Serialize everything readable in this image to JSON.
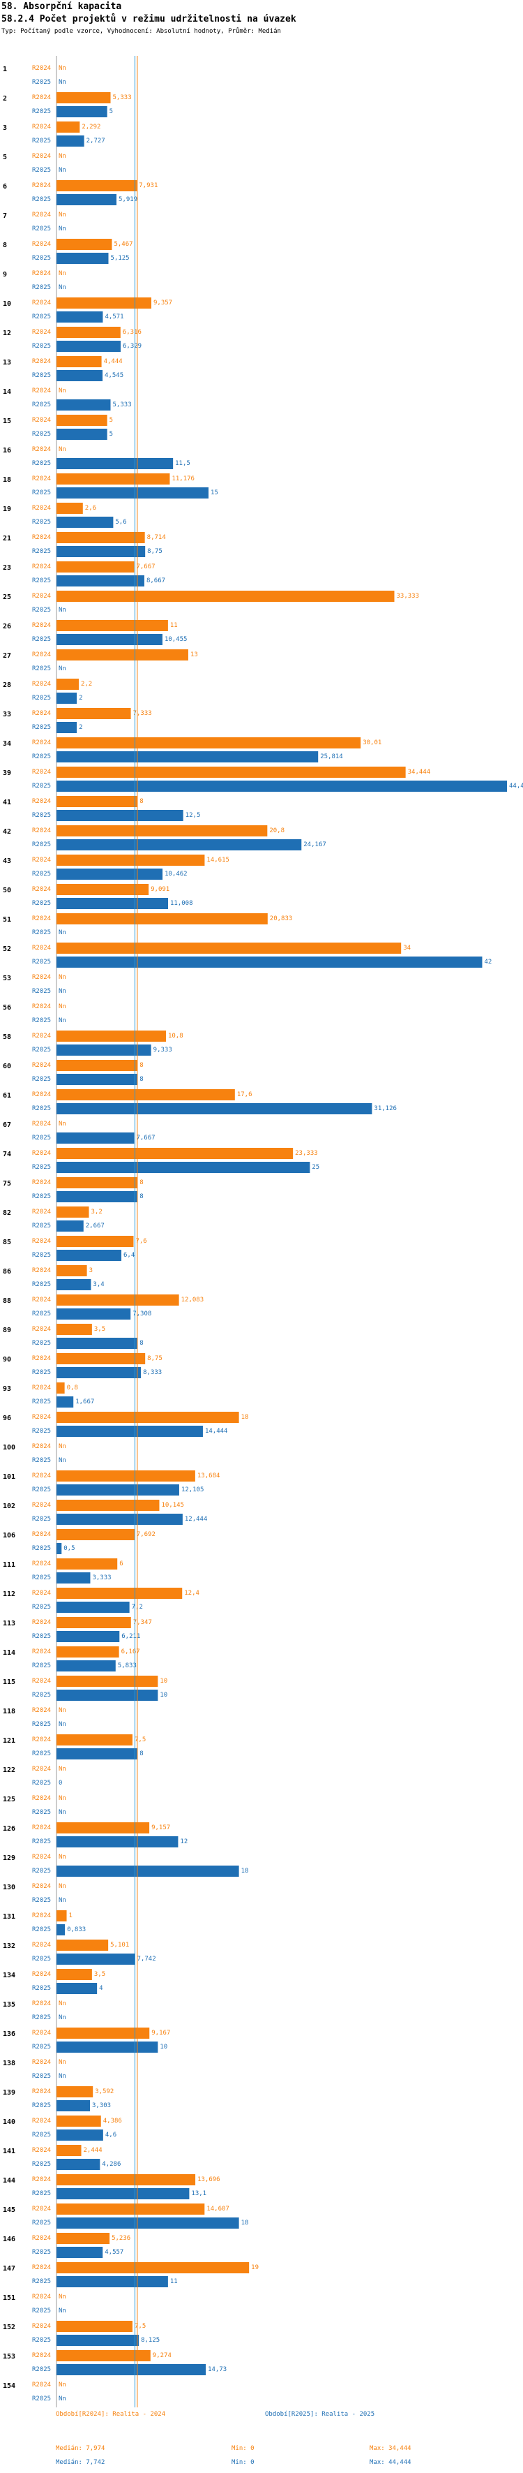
{
  "header": {
    "title": "58. Absorpční kapacita",
    "subtitle": "58.2.4 Počet projektů v režimu udržitelnosti na úvazek",
    "meta": "Typ: Počítaný podle vzorce, Vyhodnocení: Absolutní hodnoty, Průměr: Medián"
  },
  "colors": {
    "r2024": "#f7820f",
    "r2025": "#1f6fb4",
    "median2024": "#f7820f",
    "median2025": "#2a9ad8"
  },
  "legend": {
    "r2024_label": "Období[R2024]: Realita - 2024",
    "r2025_label": "Období[R2025]: Realita - 2025",
    "r2024_median": "Medián: 7,974",
    "r2025_median": "Medián: 7,742",
    "r2024_min": "Min: 0",
    "r2025_min": "Min: 0",
    "r2024_max": "Max: 34,444",
    "r2025_max": "Max: 44,444"
  },
  "chart_data": {
    "type": "bar",
    "orientation": "horizontal",
    "xlim": [
      0,
      44.444
    ],
    "medians": {
      "R2024": 7.974,
      "R2025": 7.742
    },
    "series_names": [
      "R2024",
      "R2025"
    ],
    "rows": [
      {
        "id": "1",
        "R2024": null,
        "R2025": null
      },
      {
        "id": "2",
        "R2024": 5.333,
        "R2025": 5
      },
      {
        "id": "3",
        "R2024": 2.292,
        "R2025": 2.727
      },
      {
        "id": "5",
        "R2024": null,
        "R2025": null
      },
      {
        "id": "6",
        "R2024": 7.931,
        "R2025": 5.919
      },
      {
        "id": "7",
        "R2024": null,
        "R2025": null
      },
      {
        "id": "8",
        "R2024": 5.467,
        "R2025": 5.125
      },
      {
        "id": "9",
        "R2024": null,
        "R2025": null
      },
      {
        "id": "10",
        "R2024": 9.357,
        "R2025": 4.571
      },
      {
        "id": "12",
        "R2024": 6.316,
        "R2025": 6.329
      },
      {
        "id": "13",
        "R2024": 4.444,
        "R2025": 4.545
      },
      {
        "id": "14",
        "R2024": null,
        "R2025": 5.333
      },
      {
        "id": "15",
        "R2024": 5,
        "R2025": 5
      },
      {
        "id": "16",
        "R2024": null,
        "R2025": 11.5
      },
      {
        "id": "18",
        "R2024": 11.176,
        "R2025": 15
      },
      {
        "id": "19",
        "R2024": 2.6,
        "R2025": 5.6
      },
      {
        "id": "21",
        "R2024": 8.714,
        "R2025": 8.75
      },
      {
        "id": "23",
        "R2024": 7.667,
        "R2025": 8.667
      },
      {
        "id": "25",
        "R2024": 33.333,
        "R2025": null
      },
      {
        "id": "26",
        "R2024": 11,
        "R2025": 10.455
      },
      {
        "id": "27",
        "R2024": 13,
        "R2025": null
      },
      {
        "id": "28",
        "R2024": 2.2,
        "R2025": 2
      },
      {
        "id": "33",
        "R2024": 7.333,
        "R2025": 2
      },
      {
        "id": "34",
        "R2024": 30.01,
        "R2025": 25.814
      },
      {
        "id": "39",
        "R2024": 34.444,
        "R2025": 44.444
      },
      {
        "id": "41",
        "R2024": 8,
        "R2025": 12.5
      },
      {
        "id": "42",
        "R2024": 20.8,
        "R2025": 24.167
      },
      {
        "id": "43",
        "R2024": 14.615,
        "R2025": 10.462
      },
      {
        "id": "50",
        "R2024": 9.091,
        "R2025": 11.008
      },
      {
        "id": "51",
        "R2024": 20.833,
        "R2025": null
      },
      {
        "id": "52",
        "R2024": 34,
        "R2025": 42
      },
      {
        "id": "53",
        "R2024": null,
        "R2025": null
      },
      {
        "id": "56",
        "R2024": null,
        "R2025": null
      },
      {
        "id": "58",
        "R2024": 10.8,
        "R2025": 9.333
      },
      {
        "id": "60",
        "R2024": 8,
        "R2025": 8
      },
      {
        "id": "61",
        "R2024": 17.6,
        "R2025": 31.126
      },
      {
        "id": "67",
        "R2024": null,
        "R2025": 7.667
      },
      {
        "id": "74",
        "R2024": 23.333,
        "R2025": 25
      },
      {
        "id": "75",
        "R2024": 8,
        "R2025": 8
      },
      {
        "id": "82",
        "R2024": 3.2,
        "R2025": 2.667
      },
      {
        "id": "85",
        "R2024": 7.6,
        "R2025": 6.4
      },
      {
        "id": "86",
        "R2024": 3,
        "R2025": 3.4
      },
      {
        "id": "88",
        "R2024": 12.083,
        "R2025": 7.308
      },
      {
        "id": "89",
        "R2024": 3.5,
        "R2025": 8
      },
      {
        "id": "90",
        "R2024": 8.75,
        "R2025": 8.333
      },
      {
        "id": "93",
        "R2024": 0.8,
        "R2025": 1.667
      },
      {
        "id": "96",
        "R2024": 18,
        "R2025": 14.444
      },
      {
        "id": "100",
        "R2024": null,
        "R2025": null
      },
      {
        "id": "101",
        "R2024": 13.684,
        "R2025": 12.105
      },
      {
        "id": "102",
        "R2024": 10.145,
        "R2025": 12.444
      },
      {
        "id": "106",
        "R2024": 7.692,
        "R2025": 0.5
      },
      {
        "id": "111",
        "R2024": 6,
        "R2025": 3.333
      },
      {
        "id": "112",
        "R2024": 12.4,
        "R2025": 7.2
      },
      {
        "id": "113",
        "R2024": 7.347,
        "R2025": 6.211
      },
      {
        "id": "114",
        "R2024": 6.167,
        "R2025": 5.833
      },
      {
        "id": "115",
        "R2024": 10,
        "R2025": 10
      },
      {
        "id": "118",
        "R2024": null,
        "R2025": null
      },
      {
        "id": "121",
        "R2024": 7.5,
        "R2025": 8
      },
      {
        "id": "122",
        "R2024": null,
        "R2025": 0
      },
      {
        "id": "125",
        "R2024": null,
        "R2025": null
      },
      {
        "id": "126",
        "R2024": 9.157,
        "R2025": 12
      },
      {
        "id": "129",
        "R2024": null,
        "R2025": 18
      },
      {
        "id": "130",
        "R2024": null,
        "R2025": null
      },
      {
        "id": "131",
        "R2024": 1,
        "R2025": 0.833
      },
      {
        "id": "132",
        "R2024": 5.101,
        "R2025": 7.742
      },
      {
        "id": "134",
        "R2024": 3.5,
        "R2025": 4
      },
      {
        "id": "135",
        "R2024": null,
        "R2025": null
      },
      {
        "id": "136",
        "R2024": 9.167,
        "R2025": 10
      },
      {
        "id": "138",
        "R2024": null,
        "R2025": null
      },
      {
        "id": "139",
        "R2024": 3.592,
        "R2025": 3.303
      },
      {
        "id": "140",
        "R2024": 4.386,
        "R2025": 4.6
      },
      {
        "id": "141",
        "R2024": 2.444,
        "R2025": 4.286
      },
      {
        "id": "144",
        "R2024": 13.696,
        "R2025": 13.1
      },
      {
        "id": "145",
        "R2024": 14.607,
        "R2025": 18
      },
      {
        "id": "146",
        "R2024": 5.236,
        "R2025": 4.557
      },
      {
        "id": "147",
        "R2024": 19,
        "R2025": 11
      },
      {
        "id": "151",
        "R2024": null,
        "R2025": null
      },
      {
        "id": "152",
        "R2024": 7.5,
        "R2025": 8.125
      },
      {
        "id": "153",
        "R2024": 9.274,
        "R2025": 14.73
      },
      {
        "id": "154",
        "R2024": null,
        "R2025": null
      }
    ]
  }
}
